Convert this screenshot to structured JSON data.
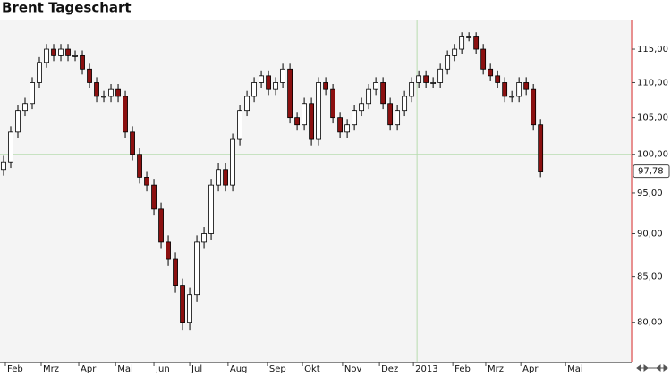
{
  "chart_data": {
    "type": "candlestick",
    "title": "Brent Tageschart",
    "open": [
      98,
      99,
      103,
      106,
      107,
      110,
      113,
      115,
      114,
      115,
      114,
      114,
      112,
      110,
      108,
      108,
      109,
      108,
      103,
      100,
      97,
      96,
      93,
      89,
      87,
      84,
      80,
      83,
      89,
      90,
      96,
      98,
      96,
      102,
      106,
      108,
      110,
      111,
      109,
      110,
      112,
      105,
      104,
      107,
      102,
      110,
      109,
      105,
      103,
      104,
      106,
      107,
      109,
      110,
      107,
      104,
      106,
      108,
      110,
      111,
      110,
      110,
      112,
      114,
      115,
      117,
      117,
      115,
      112,
      111,
      110,
      108,
      108,
      110,
      109,
      104
    ],
    "high": [
      99.8,
      103.8,
      106.8,
      107.8,
      110.8,
      113.8,
      115.8,
      115.8,
      115.8,
      115.8,
      114.8,
      114.8,
      112.8,
      110.8,
      108.8,
      109.8,
      109.8,
      108.8,
      103.8,
      100.8,
      97.8,
      96.8,
      93.8,
      89.8,
      87.8,
      84.8,
      83.8,
      89.8,
      90.8,
      96.8,
      98.8,
      98.8,
      102.8,
      106.8,
      108.8,
      110.8,
      111.8,
      111.8,
      110.8,
      112.8,
      112.8,
      105.8,
      107.8,
      107.8,
      110.8,
      110.8,
      109.8,
      105.8,
      104.8,
      106.8,
      107.8,
      109.8,
      110.8,
      110.8,
      107.8,
      106.8,
      108.8,
      110.8,
      111.8,
      111.8,
      110.8,
      112.8,
      114.8,
      115.8,
      117.6,
      117.6,
      117.6,
      115.8,
      112.8,
      111.8,
      110.8,
      108.8,
      110.8,
      110.8,
      109.8,
      104.8
    ],
    "low": [
      97.2,
      98.2,
      102.2,
      105.2,
      106.2,
      109.2,
      112.2,
      113.2,
      113.2,
      113.2,
      113.2,
      111.2,
      109.2,
      107.2,
      107.2,
      107.2,
      107.2,
      102.2,
      99.2,
      96.2,
      95.2,
      92.2,
      88.2,
      86.2,
      83.2,
      79.2,
      79.2,
      82.2,
      88.2,
      89.2,
      95.2,
      95.2,
      95.2,
      101.2,
      105.2,
      107.2,
      109.2,
      108.2,
      108.2,
      109.2,
      104.2,
      103.2,
      103.2,
      101.2,
      101.2,
      108.2,
      104.2,
      102.2,
      102.2,
      103.2,
      105.2,
      106.2,
      108.2,
      106.2,
      103.2,
      103.2,
      105.2,
      107.2,
      109.2,
      109.2,
      109.2,
      109.2,
      111.2,
      113.2,
      114.2,
      116.2,
      114.2,
      111.2,
      110.2,
      109.2,
      107.2,
      107.2,
      107.2,
      108.2,
      103.2,
      97.0
    ],
    "close": [
      99,
      103,
      106,
      107,
      110,
      113,
      115,
      114,
      115,
      114,
      114,
      112,
      110,
      108,
      108,
      109,
      108,
      103,
      100,
      97,
      96,
      93,
      89,
      87,
      84,
      80,
      83,
      89,
      90,
      96,
      98,
      96,
      102,
      106,
      108,
      110,
      111,
      109,
      110,
      112,
      105,
      104,
      107,
      102,
      110,
      109,
      105,
      103,
      104,
      106,
      107,
      109,
      110,
      107,
      104,
      106,
      108,
      110,
      111,
      110,
      110,
      112,
      114,
      115,
      117,
      117,
      115,
      112,
      111,
      110,
      108,
      108,
      110,
      109,
      104,
      97.78
    ],
    "last_value_label": "97,78",
    "up_color": "#ffffff",
    "down_color": "#8b1010",
    "wick_color": "#000000",
    "log_scale": true,
    "ylim": [
      75.9,
      119.6
    ],
    "yticks": [
      {
        "value": 80,
        "label": "80,00"
      },
      {
        "value": 85,
        "label": "85,00"
      },
      {
        "value": 90,
        "label": "90,00"
      },
      {
        "value": 95,
        "label": "95,00"
      },
      {
        "value": 100,
        "label": "100,00"
      },
      {
        "value": 105,
        "label": "105,00"
      },
      {
        "value": 110,
        "label": "110,00"
      },
      {
        "value": 115,
        "label": "115,00"
      }
    ],
    "xlim": [
      -0.5,
      87.6
    ],
    "xticks": [
      {
        "value": 0.5,
        "label": "Feb"
      },
      {
        "value": 5.5,
        "label": "Mrz"
      },
      {
        "value": 10.75,
        "label": "Apr"
      },
      {
        "value": 15.9,
        "label": "Mai"
      },
      {
        "value": 21.25,
        "label": "Jun"
      },
      {
        "value": 26.25,
        "label": "Jul"
      },
      {
        "value": 31.6,
        "label": "Aug"
      },
      {
        "value": 37.1,
        "label": "Sep"
      },
      {
        "value": 42,
        "label": "Okt"
      },
      {
        "value": 47.6,
        "label": "Nov"
      },
      {
        "value": 52.75,
        "label": "Dez"
      },
      {
        "value": 57.5,
        "label": "2013"
      },
      {
        "value": 63,
        "label": "Feb"
      },
      {
        "value": 67.6,
        "label": "Mrz"
      },
      {
        "value": 72.5,
        "label": "Apr"
      },
      {
        "value": 78.75,
        "label": "Mai"
      }
    ],
    "hline": 100,
    "vline": 57.75,
    "ref_color": "#b8dcb0"
  }
}
